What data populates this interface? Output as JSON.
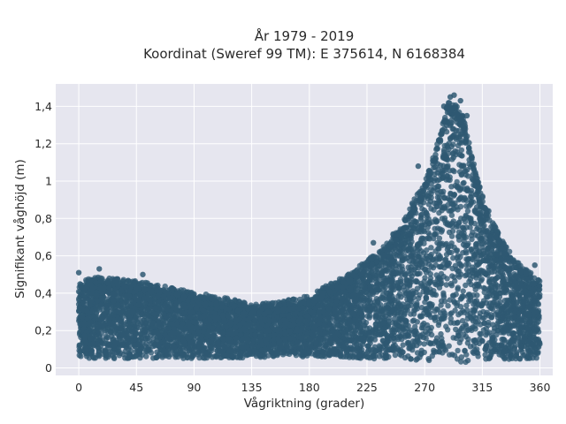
{
  "chart_data": {
    "type": "scatter",
    "title": "År 1979 - 2019",
    "subtitle": "Koordinat (Sweref 99 TM): E 375614, N 6168384",
    "xlabel": "Vågriktning (grader)",
    "ylabel": "Signifikant våghöjd (m)",
    "xlim": [
      -18,
      370
    ],
    "ylim": [
      -0.04,
      1.52
    ],
    "xticks": [
      0,
      45,
      90,
      135,
      180,
      225,
      270,
      315,
      360
    ],
    "xtick_labels": [
      "0",
      "45",
      "90",
      "135",
      "180",
      "225",
      "270",
      "315",
      "360"
    ],
    "yticks": [
      0,
      0.2,
      0.4,
      0.6,
      0.8,
      1,
      1.2,
      1.4
    ],
    "ytick_labels": [
      "0",
      "0,2",
      "0,4",
      "0,6",
      "0,8",
      "1",
      "1,2",
      "1,4"
    ],
    "grid": true,
    "marker_color": "#2e5872",
    "background_color": "#e6e6ef",
    "x_range": [
      0,
      360
    ],
    "envelope_upper": {
      "x": [
        0,
        15,
        30,
        45,
        60,
        75,
        90,
        105,
        120,
        135,
        150,
        165,
        180,
        195,
        210,
        225,
        240,
        255,
        262,
        270,
        280,
        288,
        295,
        300,
        310,
        320,
        330,
        340,
        350,
        360
      ],
      "y": [
        0.44,
        0.46,
        0.45,
        0.44,
        0.42,
        0.4,
        0.38,
        0.36,
        0.34,
        0.32,
        0.32,
        0.34,
        0.36,
        0.42,
        0.48,
        0.55,
        0.64,
        0.78,
        0.88,
        0.96,
        1.18,
        1.4,
        1.38,
        1.32,
        1.02,
        0.8,
        0.66,
        0.56,
        0.5,
        0.44
      ]
    },
    "envelope_lower": {
      "x": [
        0,
        90,
        180,
        270,
        300,
        360
      ],
      "y": [
        0.05,
        0.05,
        0.06,
        0.04,
        0.03,
        0.05
      ]
    },
    "outliers": [
      {
        "x": 0,
        "y": 0.51
      },
      {
        "x": 16,
        "y": 0.53
      },
      {
        "x": 50,
        "y": 0.5
      },
      {
        "x": 230,
        "y": 0.67
      },
      {
        "x": 265,
        "y": 1.08
      },
      {
        "x": 285,
        "y": 1.4
      },
      {
        "x": 290,
        "y": 1.45
      },
      {
        "x": 293,
        "y": 1.46
      },
      {
        "x": 298,
        "y": 1.43
      },
      {
        "x": 303,
        "y": 1.35
      },
      {
        "x": 320,
        "y": 0.84
      },
      {
        "x": 337,
        "y": 0.59
      },
      {
        "x": 356,
        "y": 0.55
      }
    ]
  }
}
